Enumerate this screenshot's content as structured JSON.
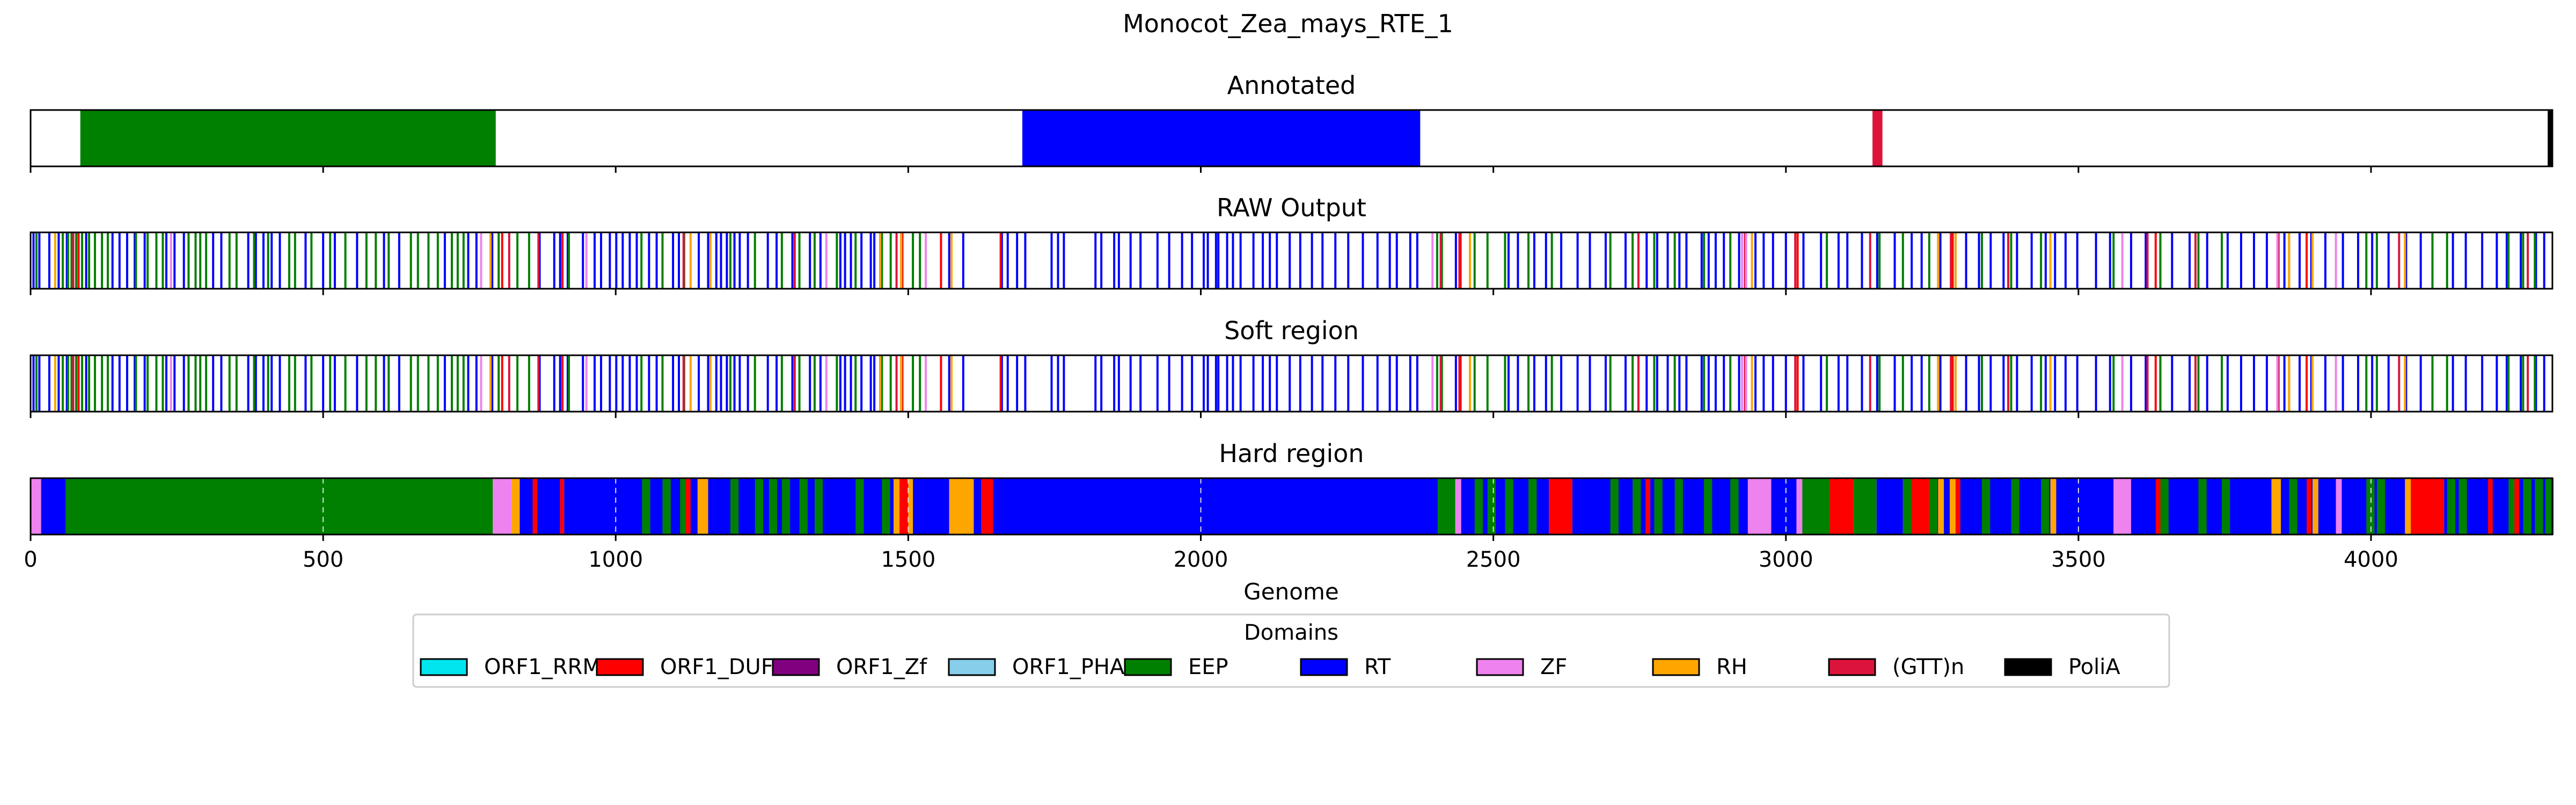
{
  "colors": {
    "ORF1_RRM": "#00e5ee",
    "ORF1_DUF": "#ff0000",
    "ORF1_Zf": "#800080",
    "ORF1_PHA": "#87ceeb",
    "EEP": "#008000",
    "RT": "#0000ff",
    "ZF": "#ee82ee",
    "RH": "#ffa500",
    "(GTT)n": "#dc143c",
    "PoliA": "#000000"
  },
  "chart_data": {
    "type": "bar",
    "title": "Monocot_Zea_mays_RTE_1",
    "xlabel": "Genome",
    "xlim": [
      0,
      4310
    ],
    "xticks": [
      0,
      500,
      1000,
      1500,
      2000,
      2500,
      3000,
      3500,
      4000
    ],
    "legend": {
      "title": "Domains",
      "placement": "bottom-center",
      "entries": [
        "ORF1_RRM",
        "ORF1_DUF",
        "ORF1_Zf",
        "ORF1_PHA",
        "EEP",
        "RT",
        "ZF",
        "RH",
        "(GTT)n",
        "PoliA"
      ]
    },
    "tracks": [
      {
        "name": "Annotated",
        "segments": [
          {
            "start": 85,
            "end": 795,
            "domain": "EEP"
          },
          {
            "start": 1695,
            "end": 2375,
            "domain": "RT"
          },
          {
            "start": 3148,
            "end": 3165,
            "domain": "(GTT)n"
          },
          {
            "start": 4302,
            "end": 4310,
            "domain": "PoliA"
          }
        ]
      },
      {
        "name": "RAW Output",
        "lines": [
          {
            "domain": "RT",
            "x": [
              5,
              15,
              32,
              48,
              62,
              95,
              140,
              152,
              165,
              178,
              195,
              232,
              246,
              262,
              312,
              326,
              372,
              385,
              398,
              412,
              426,
              470,
              500,
              520,
              558,
              604,
              630,
              708,
              748,
              762,
              789,
              870,
              895,
              905,
              918,
              944,
              964,
              975,
              990,
              1001,
              1012,
              1024,
              1036,
              1057,
              1070,
              1098,
              1108,
              1142,
              1158,
              1172,
              1180,
              1190,
              1203,
              1212,
              1226,
              1260,
              1275,
              1302,
              1332,
              1350,
              1384,
              1392,
              1402,
              1420,
              1436,
              1442,
              1452,
              1570,
              1594,
              1660,
              1670,
              1686,
              1700,
              1745,
              1756,
              1766,
              1820,
              1830,
              1852,
              1860,
              1880,
              1897,
              1926,
              1946,
              1968,
              1985,
              2005,
              2012,
              2026,
              2030,
              2045,
              2055,
              2068,
              2090,
              2106,
              2118,
              2130,
              2152,
              2170,
              2190,
              2208,
              2230,
              2252,
              2277,
              2302,
              2323,
              2335,
              2358,
              2370,
              2436,
              2460,
              2526,
              2542,
              2570,
              2590,
              2616,
              2644,
              2665,
              2692,
              2726,
              2762,
              2780,
              2798,
              2818,
              2830,
              2856,
              2868,
              2880,
              2894,
              2920,
              2948,
              2962,
              2978,
              3000,
              3030,
              3060,
              3090,
              3105,
              3130,
              3156,
              3186,
              3215,
              3232,
              3264,
              3290,
              3308,
              3330,
              3350,
              3372,
              3395,
              3420,
              3444,
              3460,
              3478,
              3498,
              3530,
              3554,
              3590,
              3615,
              3640,
              3660,
              3690,
              3720,
              3755,
              3778,
              3800,
              3822,
              3852,
              3878,
              3898,
              3922,
              3952,
              3978,
              4002,
              4030,
              4060,
              4085,
              4140,
              4162,
              4190,
              4215,
              4232,
              4256,
              4282,
              4296
            ]
          },
          {
            "domain": "EEP",
            "x": [
              10,
              55,
              64,
              70,
              78,
              88,
              100,
              110,
              122,
              132,
              180,
              200,
              215,
              226,
              270,
              282,
              290,
              300,
              340,
              352,
              382,
              406,
              442,
              452,
              480,
              512,
              538,
              574,
              590,
              612,
              650,
              662,
              680,
              696,
              720,
              730,
              740,
              770,
              800,
              832,
              852,
              920,
              1044,
              1080,
              1117,
              1196,
              1238,
              1284,
              1314,
              1340,
              1378,
              1410,
              1455,
              1470,
              1488,
              1508,
              1520,
              2404,
              2412,
              2468,
              2490,
              2520,
              2560,
              2600,
              2700,
              2738,
              2775,
              2810,
              2860,
              2905,
              3070,
              3160,
              3200,
              3245,
              3335,
              3385,
              3436,
              3560,
              3640,
              3705,
              3745,
              3860,
              3992,
              4010,
              4105,
              4130,
              4235,
              4260,
              4280
            ]
          },
          {
            "domain": "ORF1_DUF",
            "x": [
              82,
              806,
              909,
              1490,
              1556,
              1658,
              2444,
              3020,
              3285,
              3632,
              3890
            ]
          },
          {
            "domain": "(GTT)n",
            "x": [
              73,
              818,
              868,
              1116,
              1306,
              1480,
              2410,
              2442,
              2748,
              2930,
              3016,
              3144,
              3282,
              3380,
              3618,
              3700,
              3842,
              4048,
              4268
            ]
          },
          {
            "domain": "ZF",
            "x": [
              240,
              770,
              950,
              1360,
              1530,
              2396,
              2925,
              2932,
              3575,
              3840,
              3940
            ]
          },
          {
            "domain": "RH",
            "x": [
              42,
              786,
              1128,
              1162,
              1452,
              1488,
              1574,
              2460,
              2942,
              3260,
              3290,
              3452,
              3860,
              3900,
              4058
            ]
          }
        ]
      },
      {
        "name": "Soft region",
        "lines": "same as RAW Output"
      },
      {
        "name": "Hard region",
        "segments": [
          {
            "start": 0,
            "end": 18,
            "domain": "ZF"
          },
          {
            "start": 18,
            "end": 60,
            "domain": "RT"
          },
          {
            "start": 60,
            "end": 790,
            "domain": "EEP"
          },
          {
            "start": 790,
            "end": 822,
            "domain": "ZF"
          },
          {
            "start": 822,
            "end": 836,
            "domain": "RH"
          },
          {
            "start": 836,
            "end": 905,
            "domain": "RT"
          },
          {
            "start": 905,
            "end": 912,
            "domain": "ORF1_DUF"
          },
          {
            "start": 912,
            "end": 1140,
            "domain": "RT"
          },
          {
            "start": 1140,
            "end": 1158,
            "domain": "RH"
          },
          {
            "start": 1158,
            "end": 1475,
            "domain": "RT"
          },
          {
            "start": 1475,
            "end": 1485,
            "domain": "RH"
          },
          {
            "start": 1485,
            "end": 1500,
            "domain": "ORF1_DUF"
          },
          {
            "start": 1500,
            "end": 1508,
            "domain": "RH"
          },
          {
            "start": 1508,
            "end": 1570,
            "domain": "RT"
          },
          {
            "start": 1570,
            "end": 1612,
            "domain": "RH"
          },
          {
            "start": 1612,
            "end": 1625,
            "domain": "RT"
          },
          {
            "start": 1625,
            "end": 1645,
            "domain": "ORF1_DUF"
          },
          {
            "start": 1645,
            "end": 2405,
            "domain": "RT"
          },
          {
            "start": 2405,
            "end": 2435,
            "domain": "EEP"
          },
          {
            "start": 2435,
            "end": 2445,
            "domain": "ZF"
          },
          {
            "start": 2445,
            "end": 2595,
            "domain": "RT"
          },
          {
            "start": 2595,
            "end": 2635,
            "domain": "ORF1_DUF"
          },
          {
            "start": 2635,
            "end": 2935,
            "domain": "RT"
          },
          {
            "start": 2935,
            "end": 2975,
            "domain": "ZF"
          },
          {
            "start": 2975,
            "end": 3020,
            "domain": "RT"
          },
          {
            "start": 3020,
            "end": 3075,
            "domain": "EEP"
          },
          {
            "start": 3075,
            "end": 3115,
            "domain": "ORF1_DUF"
          },
          {
            "start": 3115,
            "end": 3155,
            "domain": "EEP"
          },
          {
            "start": 3155,
            "end": 3200,
            "domain": "RT"
          },
          {
            "start": 3200,
            "end": 3245,
            "domain": "ORF1_DUF"
          },
          {
            "start": 3245,
            "end": 3560,
            "domain": "RT"
          },
          {
            "start": 3560,
            "end": 3590,
            "domain": "ZF"
          },
          {
            "start": 3590,
            "end": 3830,
            "domain": "RT"
          },
          {
            "start": 3830,
            "end": 3846,
            "domain": "RH"
          },
          {
            "start": 3846,
            "end": 4060,
            "domain": "RT"
          },
          {
            "start": 4060,
            "end": 4125,
            "domain": "ORF1_DUF"
          },
          {
            "start": 4125,
            "end": 4310,
            "domain": "RT"
          }
        ],
        "overlays": [
          {
            "domain": "EEP",
            "x": [
              1045,
              1080,
              1110,
              1196,
              1238,
              1262,
              1284,
              1314,
              1340,
              1410,
              1455,
              2468,
              2490,
              2520,
              2560,
              2700,
              2738,
              2775,
              2810,
              2860,
              2905,
              3200,
              3245,
              3335,
              3385,
              3436,
              3640,
              3705,
              3745,
              3860,
              3992,
              4010,
              4130,
              4150,
              4235,
              4260,
              4280,
              4298
            ],
            "width": 14
          },
          {
            "domain": "ORF1_DUF",
            "x": [
              858,
              1120,
              2760,
              3290,
              3632,
              3890,
              4200,
              4245
            ],
            "width": 8
          },
          {
            "domain": "RH",
            "x": [
              3260,
              3280,
              3452,
              3900,
              4058
            ],
            "width": 10
          },
          {
            "domain": "ZF",
            "x": [
              3018,
              3940
            ],
            "width": 10
          }
        ]
      }
    ]
  }
}
